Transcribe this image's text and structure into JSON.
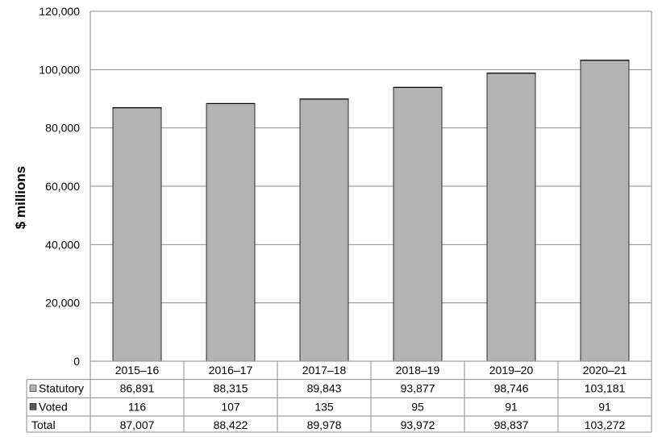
{
  "chart_data": {
    "type": "bar",
    "stacked": true,
    "ylabel": "$ millions",
    "ylim": [
      0,
      120000
    ],
    "yticks": [
      0,
      20000,
      40000,
      60000,
      80000,
      100000,
      120000
    ],
    "ytick_labels": [
      "0",
      "20,000",
      "40,000",
      "60,000",
      "80,000",
      "100,000",
      "120,000"
    ],
    "grid": true,
    "categories": [
      "2015–16",
      "2016–17",
      "2017–18",
      "2018–19",
      "2019–20",
      "2020–21"
    ],
    "series": [
      {
        "name": "Statutory",
        "color": "#b3b3b3",
        "values": [
          86891,
          88315,
          89843,
          93877,
          98746,
          103181
        ],
        "labels": [
          "86,891",
          "88,315",
          "89,843",
          "93,877",
          "98,746",
          "103,181"
        ]
      },
      {
        "name": "Voted",
        "color": "#595959",
        "values": [
          116,
          107,
          135,
          95,
          91,
          91
        ],
        "labels": [
          "116",
          "107",
          "135",
          "95",
          "91",
          "91"
        ]
      }
    ],
    "total": {
      "name": "Total",
      "values": [
        87007,
        88422,
        89978,
        93972,
        98837,
        103272
      ],
      "labels": [
        "87,007",
        "88,422",
        "89,978",
        "93,972",
        "98,837",
        "103,272"
      ]
    }
  }
}
